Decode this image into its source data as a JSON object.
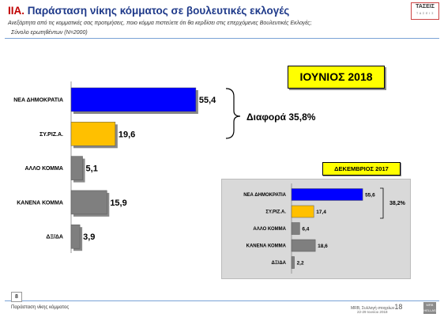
{
  "header": {
    "title_code": "IIA.",
    "title": "Παράσταση νίκης κόμματος σε βουλευτικές εκλογές",
    "subtitle": "Ανεξάρτητα από τις κομματικές σας προτιμήσεις, ποιο κόμμα πιστεύετε ότι θα κερδίσει στις επερχόμενες Βουλευτικές Εκλογές;",
    "basis": "Σύνολο ερωτηθέντων (N=2000)",
    "logo_text": "ΤΑΣΕΙΣ",
    "logo_subtext": "Τ Α Σ Ε Ι Σ"
  },
  "colors": {
    "nd": "#0000ff",
    "syriza": "#ffc000",
    "other": "#7f7f7f",
    "title": "#1f3a8a",
    "highlight": "#ffff00"
  },
  "chart_data": [
    {
      "type": "bar",
      "orientation": "horizontal",
      "heading": "ΙΟΥΝΙΟΣ 2018",
      "categories": [
        "ΝΕΑ ΔΗΜΟΚΡΑΤΙΑ",
        "ΣΥ.ΡΙΖ.Α.",
        "ΑΛΛΟ ΚΟΜΜΑ",
        "ΚΑΝΕΝΑ ΚΟΜΜΑ",
        "ΔΞ/ΔΑ"
      ],
      "values": [
        55.4,
        19.6,
        5.1,
        15.9,
        3.9
      ],
      "value_labels": [
        "55,4",
        "19,6",
        "5,1",
        "15,9",
        "3,9"
      ],
      "bar_colors": [
        "#0000ff",
        "#ffc000",
        "#7f7f7f",
        "#7f7f7f",
        "#7f7f7f"
      ],
      "annotation": "Διαφορά 35,8%",
      "xlim": [
        0,
        100
      ]
    },
    {
      "type": "bar",
      "orientation": "horizontal",
      "heading": "ΔΕΚΕΜΒΡΙΟΣ 2017",
      "categories": [
        "ΝΕΑ ΔΗΜΟΚΡΑΤΙΑ",
        "ΣΥ.ΡΙΖ.Α.",
        "ΑΛΛΟ ΚΟΜΜΑ",
        "ΚΑΝΕΝΑ ΚΟΜΜΑ",
        "ΔΞ/ΔΑ"
      ],
      "values": [
        55.6,
        17.4,
        6.4,
        18.6,
        2.2
      ],
      "value_labels": [
        "55,6",
        "17,4",
        "6,4",
        "18,6",
        "2,2"
      ],
      "bar_colors": [
        "#0000ff",
        "#ffc000",
        "#7f7f7f",
        "#7f7f7f",
        "#7f7f7f"
      ],
      "annotation": "38,2%",
      "xlim": [
        0,
        100
      ]
    }
  ],
  "footer": {
    "page_number": "8",
    "section_label": "Παράσταση νίκης κόμματος",
    "source": "MRB, Συλλογή στοιχείων",
    "source_page": "18",
    "dates": "22-29 Ιουνίου 2018",
    "logo_text": "MRB",
    "logo_subtext": "HELLAS"
  }
}
